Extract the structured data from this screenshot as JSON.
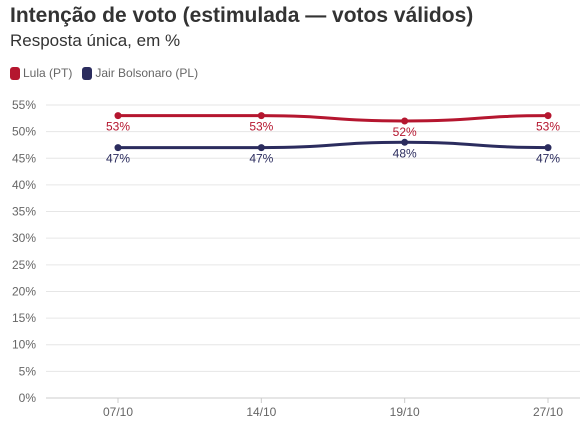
{
  "chart_data": {
    "type": "line",
    "title": "Intenção de voto (estimulada — votos válidos)",
    "subtitle": "Resposta única, em %",
    "categories": [
      "07/10",
      "14/10",
      "19/10",
      "27/10"
    ],
    "ylim": [
      0,
      55
    ],
    "yticks": [
      0,
      5,
      10,
      15,
      20,
      25,
      30,
      35,
      40,
      45,
      50,
      55
    ],
    "ytick_labels": [
      "0%",
      "5%",
      "10%",
      "15%",
      "20%",
      "25%",
      "30%",
      "35%",
      "40%",
      "45%",
      "50%",
      "55%"
    ],
    "grid": true,
    "legend_position": "top-left",
    "series": [
      {
        "name": "Lula (PT)",
        "color": "#b5162f",
        "values": [
          53,
          53,
          52,
          53
        ],
        "labels": [
          "53%",
          "53%",
          "52%",
          "53%"
        ],
        "label_position": "below"
      },
      {
        "name": "Jair Bolsonaro (PL)",
        "color": "#2b2c5e",
        "values": [
          47,
          47,
          48,
          47
        ],
        "labels": [
          "47%",
          "47%",
          "48%",
          "47%"
        ],
        "label_position": "below"
      }
    ]
  }
}
